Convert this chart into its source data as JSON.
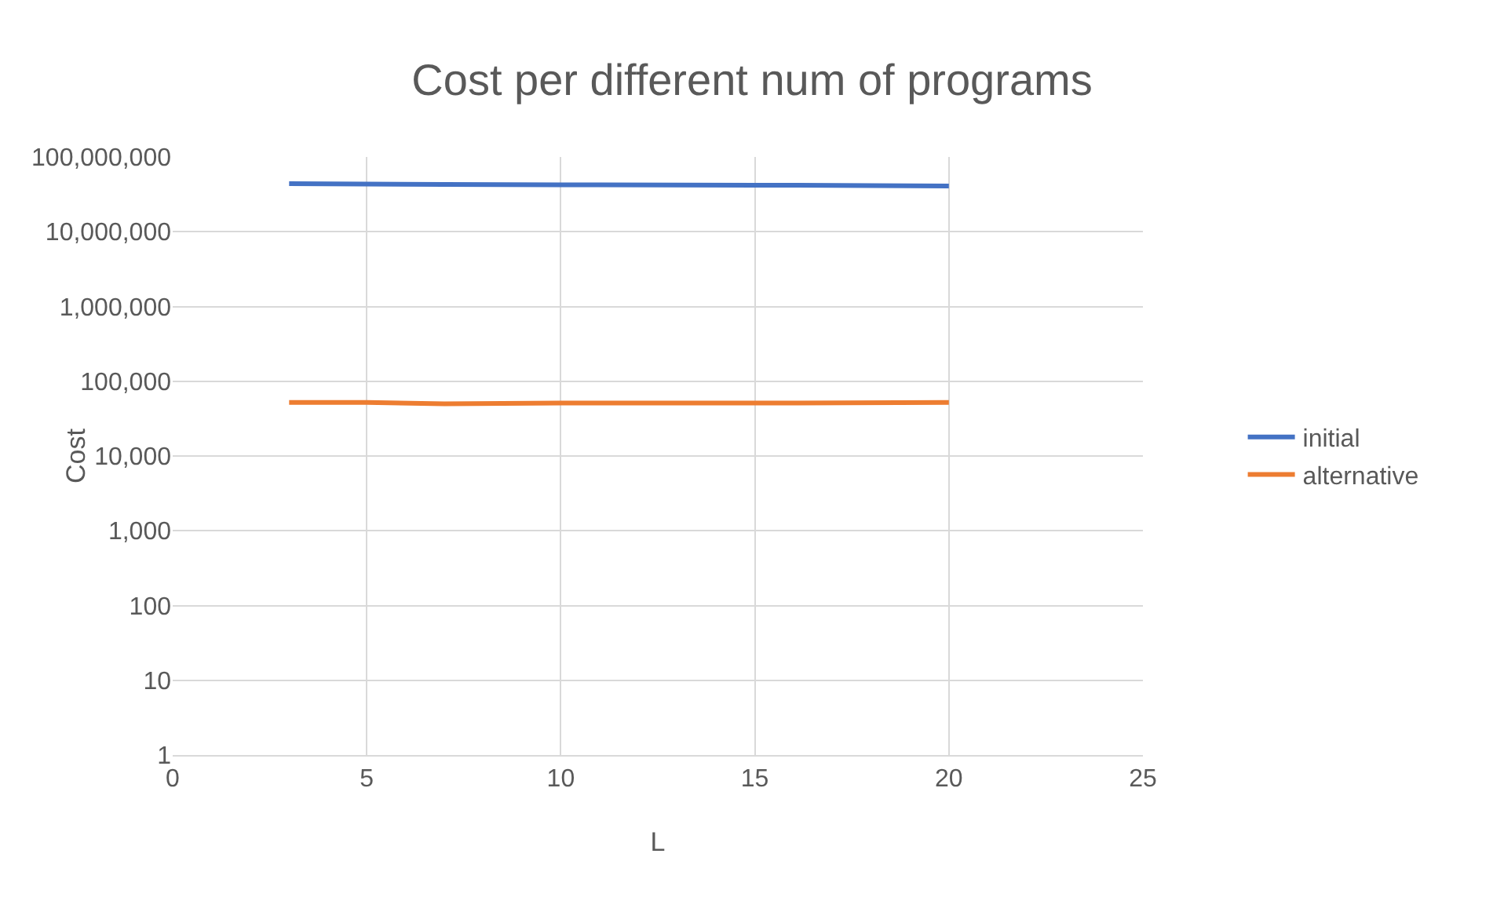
{
  "chart_data": {
    "type": "line",
    "title": "Cost per different num of programs",
    "xlabel": "L",
    "ylabel": "Cost",
    "series": [
      {
        "name": "initial",
        "color": "#4472c4",
        "x": [
          3,
          7,
          10,
          15,
          20
        ],
        "values": [
          44000000,
          43000000,
          42500000,
          42000000,
          41000000
        ]
      },
      {
        "name": "alternative",
        "color": "#ed7d31",
        "x": [
          3,
          5,
          7,
          10,
          15,
          20
        ],
        "values": [
          52000.0,
          52000,
          50000,
          51000,
          51000,
          52000
        ]
      }
    ],
    "log": "y",
    "xlim": [
      0,
      25
    ],
    "xticks": [
      0,
      5,
      10,
      15,
      20,
      25
    ],
    "ylim": [
      1,
      100000000
    ],
    "yticks": [
      {
        "value": 1,
        "label": "1"
      },
      {
        "value": 10,
        "label": "10"
      },
      {
        "value": 100,
        "label": "100"
      },
      {
        "value": 1000,
        "label": "1,000"
      },
      {
        "value": 10000,
        "label": "10,000"
      },
      {
        "value": 100000,
        "label": "100,000"
      },
      {
        "value": 1000000,
        "label": "1,000,000"
      },
      {
        "value": 10000000,
        "label": "10,000,000"
      },
      {
        "value": 100000000,
        "label": "100,000,000"
      }
    ],
    "grid": true,
    "legend": "right",
    "marker": "none",
    "line_style": "solid"
  }
}
